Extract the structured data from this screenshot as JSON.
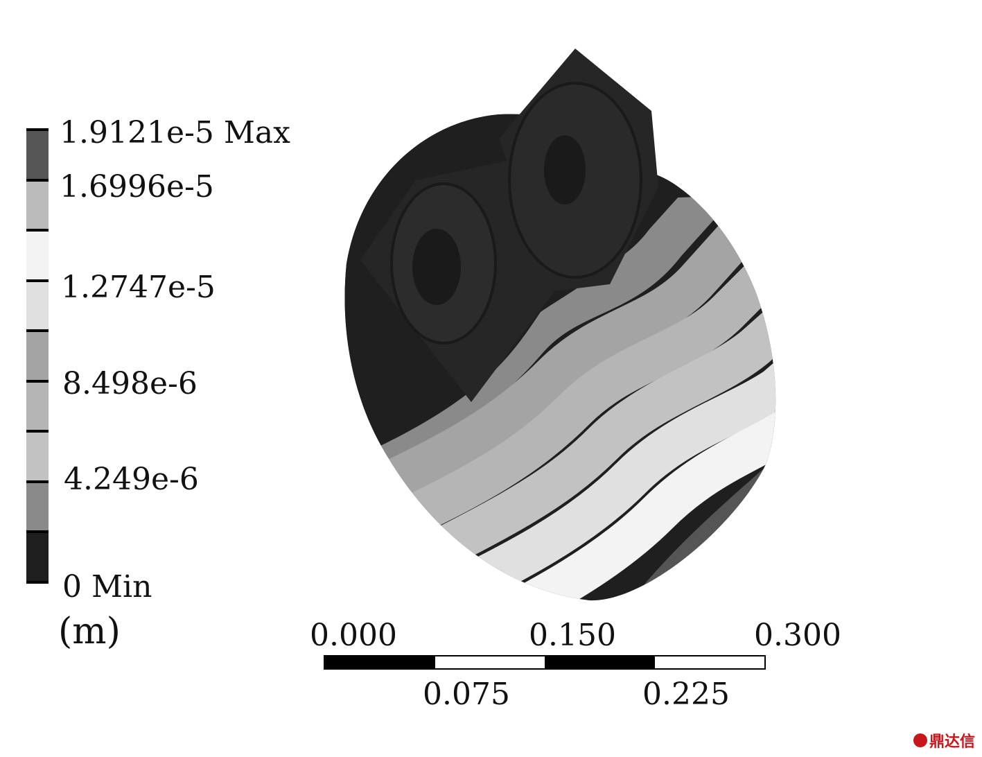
{
  "legend": {
    "labels": {
      "max": "1.9121e-5 Max",
      "l1": "1.6996e-5",
      "l2": "1.2747e-5",
      "l3": "8.498e-6",
      "l4": "4.249e-6",
      "min": "0 Min"
    },
    "unit": "(m)",
    "band_colors": [
      "#555555",
      "#bbbbbb",
      "#f3f3f3",
      "#e0e0e0",
      "#a4a4a4",
      "#b5b5b5",
      "#c2c2c2",
      "#8a8a8a",
      "#1e1e1e"
    ]
  },
  "scale_bar": {
    "top_labels": [
      "0.000",
      "0.150",
      "0.300"
    ],
    "bottom_labels": [
      "0.075",
      "0.225"
    ]
  },
  "watermark": "鼎达信"
}
